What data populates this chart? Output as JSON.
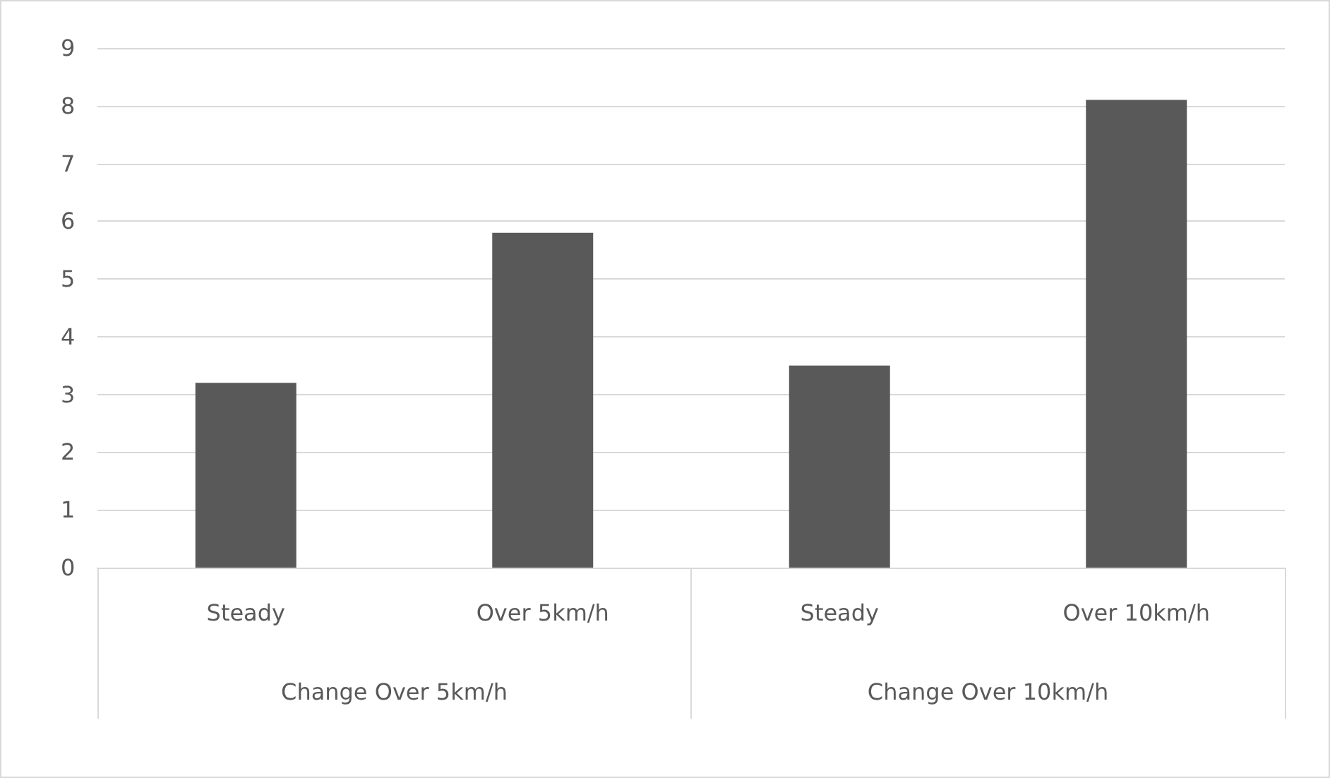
{
  "chart_data": {
    "type": "bar",
    "categories": [
      "Steady",
      "Over 5km/h",
      "Steady",
      "Over 10km/h"
    ],
    "values": [
      3.2,
      5.8,
      3.5,
      8.1
    ],
    "color": "#595959",
    "annotations": [
      "Change Over 5km/h",
      "Change Over 10km/h"
    ],
    "ylim": [
      0,
      9
    ],
    "yticks": [
      0,
      1,
      2,
      3,
      4,
      5,
      6,
      7,
      8,
      9
    ],
    "grid": "y"
  }
}
